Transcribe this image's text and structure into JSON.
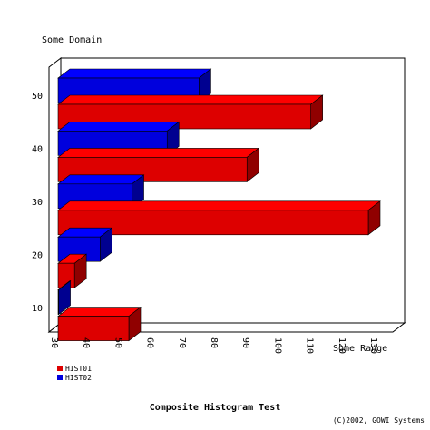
{
  "chart_data": {
    "type": "bar",
    "orientation": "horizontal",
    "style": "3d",
    "title": "Composite Histogram Test",
    "xlabel": "Some Range",
    "ylabel": "Some Domain",
    "copyright": "(C)2002, GOWI Systems",
    "categories": [
      "10",
      "20",
      "30",
      "40",
      "50"
    ],
    "xlim": [
      30,
      130
    ],
    "xticks": [
      "30",
      "40",
      "50",
      "60",
      "70",
      "80",
      "90",
      "100",
      "110",
      "120",
      "130"
    ],
    "legend_position": "bottom-left",
    "grid": false,
    "series": [
      {
        "name": "HIST01",
        "color": "#dd0000",
        "values": [
          55,
          38,
          130,
          92,
          112
        ]
      },
      {
        "name": "HIST02",
        "color": "#0000dd",
        "values": [
          33,
          46,
          56,
          67,
          77
        ]
      }
    ]
  }
}
